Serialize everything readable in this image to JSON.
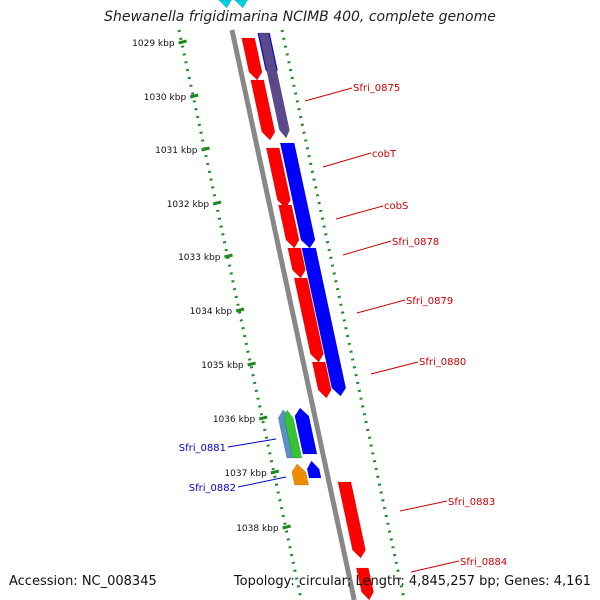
{
  "title": "Shewanella frigidimarina NCIMB 400, complete genome",
  "footer": {
    "accession": "Accession: NC_008345",
    "topology": "Topology: circular; Length: 4,845,257 bp; Genes: 4,161"
  },
  "colors": {
    "backbone": "#888888",
    "tick": "#1f8a1f",
    "forward_gene": "#ff0000",
    "reverse_gene": "#0000ff",
    "label_red": "#cc0000",
    "label_blue": "#0000cc"
  },
  "ruler": {
    "unit": "kbp",
    "labels": [
      "1029 kbp",
      "1030 kbp",
      "1031 kbp",
      "1032 kbp",
      "1033 kbp",
      "1034 kbp",
      "1035 kbp",
      "1036 kbp",
      "1037 kbp",
      "1038 kbp"
    ]
  },
  "gene_labels": [
    {
      "name": "Sfri_0875",
      "color": "red"
    },
    {
      "name": "cobT",
      "color": "red"
    },
    {
      "name": "cobS",
      "color": "red"
    },
    {
      "name": "Sfri_0878",
      "color": "red"
    },
    {
      "name": "Sfri_0879",
      "color": "red"
    },
    {
      "name": "Sfri_0880",
      "color": "red"
    },
    {
      "name": "Sfri_0881",
      "color": "blue"
    },
    {
      "name": "Sfri_0882",
      "color": "blue"
    },
    {
      "name": "Sfri_0883",
      "color": "red"
    },
    {
      "name": "Sfri_0884",
      "color": "red"
    }
  ]
}
